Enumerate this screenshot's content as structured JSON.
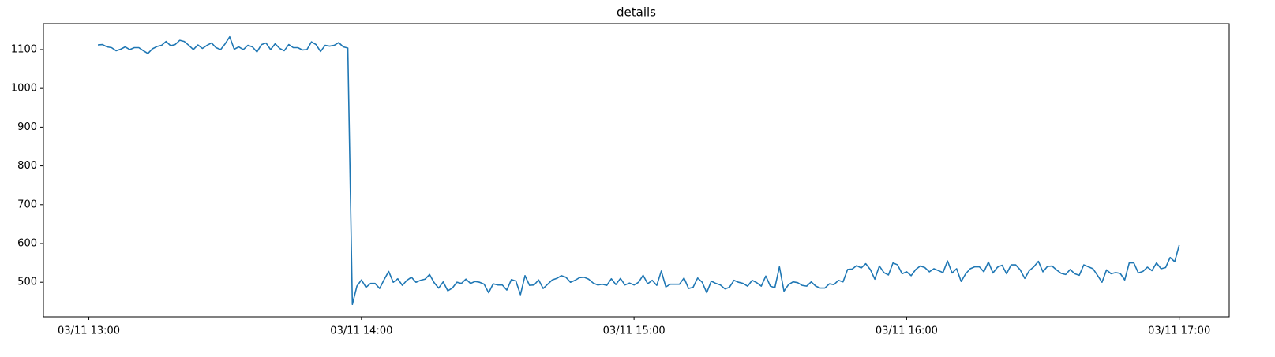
{
  "chart_data": {
    "type": "line",
    "title": "details",
    "x": [
      "03/11 13:02",
      "03/11 13:03",
      "03/11 13:04",
      "03/11 13:05",
      "03/11 13:06",
      "03/11 13:07",
      "03/11 13:08",
      "03/11 13:09",
      "03/11 13:10",
      "03/11 13:11",
      "03/11 13:12",
      "03/11 13:13",
      "03/11 13:14",
      "03/11 13:15",
      "03/11 13:16",
      "03/11 13:17",
      "03/11 13:18",
      "03/11 13:19",
      "03/11 13:20",
      "03/11 13:21",
      "03/11 13:22",
      "03/11 13:23",
      "03/11 13:24",
      "03/11 13:25",
      "03/11 13:26",
      "03/11 13:27",
      "03/11 13:28",
      "03/11 13:29",
      "03/11 13:30",
      "03/11 13:31",
      "03/11 13:32",
      "03/11 13:33",
      "03/11 13:34",
      "03/11 13:35",
      "03/11 13:36",
      "03/11 13:37",
      "03/11 13:38",
      "03/11 13:39",
      "03/11 13:40",
      "03/11 13:41",
      "03/11 13:42",
      "03/11 13:43",
      "03/11 13:44",
      "03/11 13:45",
      "03/11 13:46",
      "03/11 13:47",
      "03/11 13:48",
      "03/11 13:49",
      "03/11 13:50",
      "03/11 13:51",
      "03/11 13:52",
      "03/11 13:53",
      "03/11 13:54",
      "03/11 13:55",
      "03/11 13:56",
      "03/11 13:57",
      "03/11 13:58",
      "03/11 13:59",
      "03/11 14:00",
      "03/11 14:01",
      "03/11 14:02",
      "03/11 14:03",
      "03/11 14:04",
      "03/11 14:05",
      "03/11 14:06",
      "03/11 14:07",
      "03/11 14:08",
      "03/11 14:09",
      "03/11 14:10",
      "03/11 14:11",
      "03/11 14:12",
      "03/11 14:13",
      "03/11 14:14",
      "03/11 14:15",
      "03/11 14:16",
      "03/11 14:17",
      "03/11 14:18",
      "03/11 14:19",
      "03/11 14:20",
      "03/11 14:21",
      "03/11 14:22",
      "03/11 14:23",
      "03/11 14:24",
      "03/11 14:25",
      "03/11 14:26",
      "03/11 14:27",
      "03/11 14:28",
      "03/11 14:29",
      "03/11 14:30",
      "03/11 14:31",
      "03/11 14:32",
      "03/11 14:33",
      "03/11 14:34",
      "03/11 14:35",
      "03/11 14:36",
      "03/11 14:37",
      "03/11 14:38",
      "03/11 14:39",
      "03/11 14:40",
      "03/11 14:41",
      "03/11 14:42",
      "03/11 14:43",
      "03/11 14:44",
      "03/11 14:45",
      "03/11 14:46",
      "03/11 14:47",
      "03/11 14:48",
      "03/11 14:49",
      "03/11 14:50",
      "03/11 14:51",
      "03/11 14:52",
      "03/11 14:53",
      "03/11 14:54",
      "03/11 14:55",
      "03/11 14:56",
      "03/11 14:57",
      "03/11 14:58",
      "03/11 14:59",
      "03/11 15:00",
      "03/11 15:01",
      "03/11 15:02",
      "03/11 15:03",
      "03/11 15:04",
      "03/11 15:05",
      "03/11 15:06",
      "03/11 15:07",
      "03/11 15:08",
      "03/11 15:09",
      "03/11 15:10",
      "03/11 15:11",
      "03/11 15:12",
      "03/11 15:13",
      "03/11 15:14",
      "03/11 15:15",
      "03/11 15:16",
      "03/11 15:17",
      "03/11 15:18",
      "03/11 15:19",
      "03/11 15:20",
      "03/11 15:21",
      "03/11 15:22",
      "03/11 15:23",
      "03/11 15:24",
      "03/11 15:25",
      "03/11 15:26",
      "03/11 15:27",
      "03/11 15:28",
      "03/11 15:29",
      "03/11 15:30",
      "03/11 15:31",
      "03/11 15:32",
      "03/11 15:33",
      "03/11 15:34",
      "03/11 15:35",
      "03/11 15:36",
      "03/11 15:37",
      "03/11 15:38",
      "03/11 15:39",
      "03/11 15:40",
      "03/11 15:41",
      "03/11 15:42",
      "03/11 15:43",
      "03/11 15:44",
      "03/11 15:45",
      "03/11 15:46",
      "03/11 15:47",
      "03/11 15:48",
      "03/11 15:49",
      "03/11 15:50",
      "03/11 15:51",
      "03/11 15:52",
      "03/11 15:53",
      "03/11 15:54",
      "03/11 15:55",
      "03/11 15:56",
      "03/11 15:57",
      "03/11 15:58",
      "03/11 15:59",
      "03/11 16:00",
      "03/11 16:01",
      "03/11 16:02",
      "03/11 16:03",
      "03/11 16:04",
      "03/11 16:05",
      "03/11 16:06",
      "03/11 16:07",
      "03/11 16:08",
      "03/11 16:09",
      "03/11 16:10",
      "03/11 16:11",
      "03/11 16:12",
      "03/11 16:13",
      "03/11 16:14",
      "03/11 16:15",
      "03/11 16:16",
      "03/11 16:17",
      "03/11 16:18",
      "03/11 16:19",
      "03/11 16:20",
      "03/11 16:21",
      "03/11 16:22",
      "03/11 16:23",
      "03/11 16:24",
      "03/11 16:25",
      "03/11 16:26",
      "03/11 16:27",
      "03/11 16:28",
      "03/11 16:29",
      "03/11 16:30",
      "03/11 16:31",
      "03/11 16:32",
      "03/11 16:33",
      "03/11 16:34",
      "03/11 16:35",
      "03/11 16:36",
      "03/11 16:37",
      "03/11 16:38",
      "03/11 16:39",
      "03/11 16:40",
      "03/11 16:41",
      "03/11 16:42",
      "03/11 16:43",
      "03/11 16:44",
      "03/11 16:45",
      "03/11 16:46",
      "03/11 16:47",
      "03/11 16:48",
      "03/11 16:49",
      "03/11 16:50",
      "03/11 16:51",
      "03/11 16:52",
      "03/11 16:53",
      "03/11 16:54",
      "03/11 16:55",
      "03/11 16:56",
      "03/11 16:57",
      "03/11 16:58",
      "03/11 16:59",
      "03/11 17:00"
    ],
    "values": [
      1112,
      1113,
      1107,
      1105,
      1097,
      1101,
      1107,
      1100,
      1105,
      1105,
      1097,
      1090,
      1102,
      1108,
      1111,
      1121,
      1110,
      1113,
      1124,
      1121,
      1111,
      1100,
      1112,
      1103,
      1111,
      1117,
      1105,
      1100,
      1115,
      1133,
      1101,
      1107,
      1100,
      1111,
      1107,
      1094,
      1113,
      1117,
      1100,
      1115,
      1103,
      1097,
      1113,
      1105,
      1105,
      1099,
      1100,
      1120,
      1113,
      1095,
      1111,
      1109,
      1111,
      1118,
      1107,
      1104,
      443,
      490,
      506,
      487,
      497,
      497,
      484,
      507,
      528,
      500,
      509,
      492,
      505,
      513,
      500,
      505,
      508,
      520,
      499,
      485,
      501,
      478,
      485,
      500,
      497,
      508,
      497,
      502,
      500,
      495,
      473,
      496,
      493,
      493,
      480,
      507,
      503,
      468,
      517,
      492,
      493,
      506,
      484,
      495,
      506,
      510,
      517,
      513,
      500,
      505,
      512,
      513,
      508,
      498,
      493,
      495,
      492,
      509,
      494,
      510,
      493,
      498,
      493,
      500,
      518,
      496,
      505,
      492,
      529,
      488,
      495,
      495,
      495,
      511,
      484,
      487,
      511,
      500,
      473,
      503,
      497,
      493,
      483,
      487,
      505,
      500,
      497,
      490,
      505,
      499,
      490,
      516,
      490,
      486,
      540,
      477,
      494,
      501,
      499,
      492,
      490,
      501,
      490,
      485,
      485,
      496,
      494,
      505,
      501,
      533,
      534,
      543,
      537,
      548,
      533,
      508,
      542,
      525,
      519,
      550,
      545,
      522,
      527,
      517,
      533,
      542,
      538,
      527,
      535,
      530,
      525,
      555,
      524,
      535,
      502,
      522,
      535,
      540,
      540,
      527,
      552,
      524,
      539,
      544,
      522,
      545,
      545,
      532,
      510,
      530,
      540,
      554,
      527,
      541,
      542,
      532,
      523,
      520,
      533,
      522,
      518,
      545,
      540,
      535,
      518,
      500,
      532,
      522,
      525,
      523,
      506,
      550,
      550,
      524,
      528,
      539,
      530,
      550,
      535,
      538,
      564,
      553,
      596
    ],
    "color": "#1f77b4",
    "xlim": [
      "03/11 12:50",
      "03/11 17:11"
    ],
    "xticks": [
      "03/11 13:00",
      "03/11 14:00",
      "03/11 15:00",
      "03/11 16:00",
      "03/11 17:00"
    ],
    "ylim": [
      411,
      1167
    ],
    "yticks": [
      500,
      600,
      700,
      800,
      900,
      1000,
      1100
    ]
  }
}
